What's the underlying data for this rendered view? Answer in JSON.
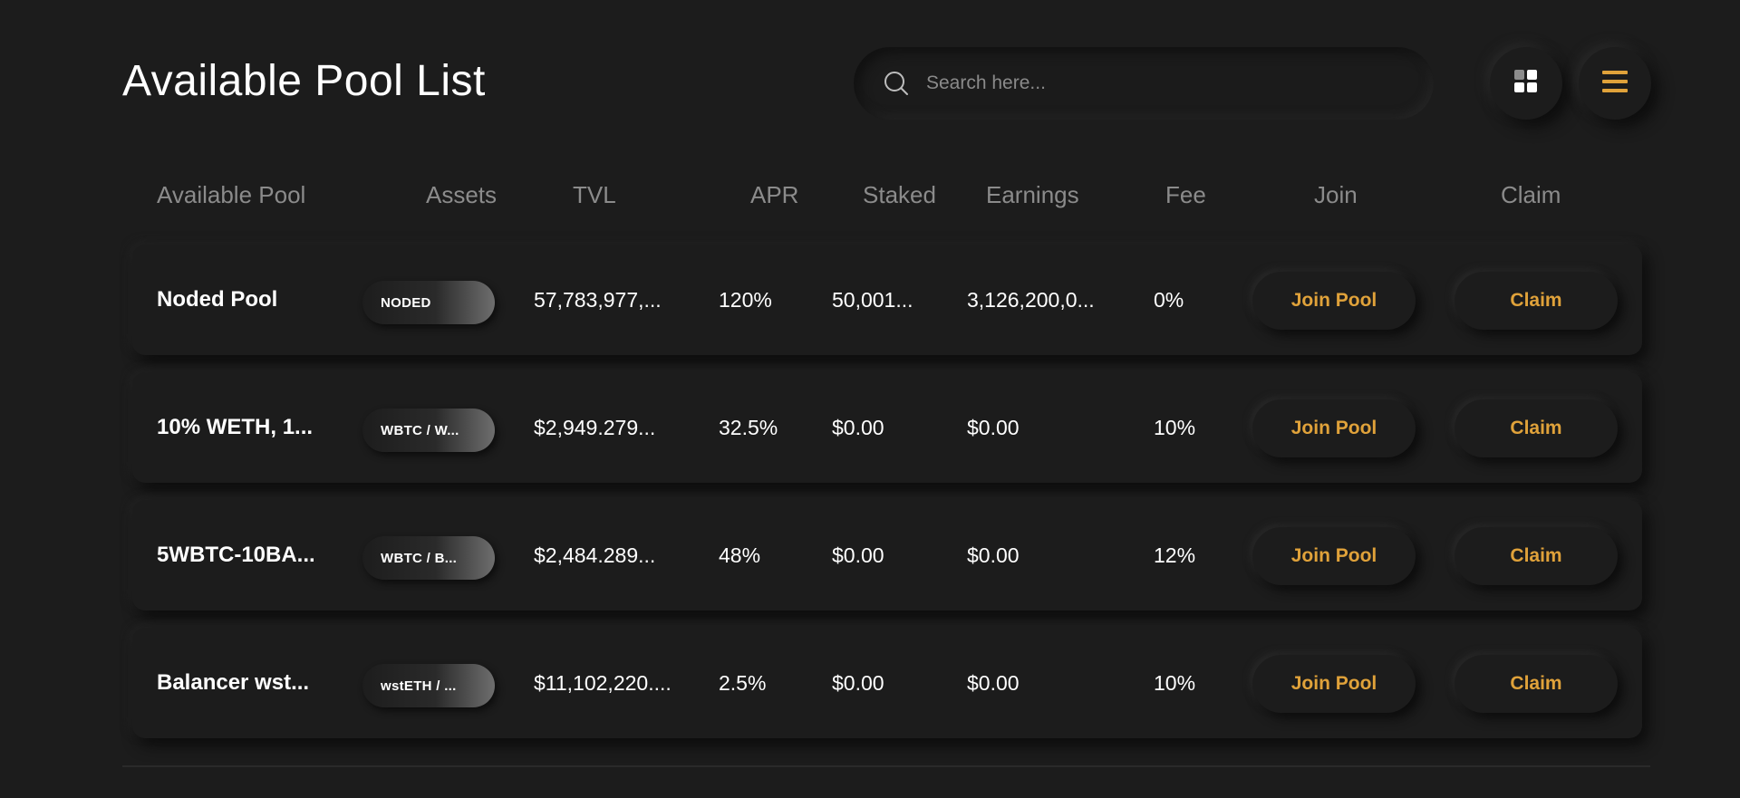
{
  "page": {
    "title": "Available Pool List"
  },
  "search": {
    "placeholder": "Search here..."
  },
  "view_toggle": {
    "grid_icon": "grid-icon",
    "list_icon": "menu-icon",
    "accent": "#e0a23a"
  },
  "table": {
    "headers": [
      "Available Pool",
      "Assets",
      "TVL",
      "APR",
      "Staked",
      "Earnings",
      "Fee",
      "Join",
      "Claim"
    ],
    "rows": [
      {
        "name": "Noded Pool",
        "assets": "NODED",
        "tvl": "57,783,977,...",
        "apr": "120%",
        "staked": "50,001...",
        "earnings": "3,126,200,0...",
        "fee": "0%",
        "join": "Join Pool",
        "claim": "Claim"
      },
      {
        "name": "10% WETH, 1...",
        "assets": "WBTC / W...",
        "tvl": "$2,949.279...",
        "apr": "32.5%",
        "staked": "$0.00",
        "earnings": "$0.00",
        "fee": "10%",
        "join": "Join Pool",
        "claim": "Claim"
      },
      {
        "name": "5WBTC-10BA...",
        "assets": "WBTC / B...",
        "tvl": "$2,484.289...",
        "apr": "48%",
        "staked": "$0.00",
        "earnings": "$0.00",
        "fee": "12%",
        "join": "Join Pool",
        "claim": "Claim"
      },
      {
        "name": "Balancer wst...",
        "assets": "wstETH / ...",
        "tvl": "$11,102,220....",
        "apr": "2.5%",
        "staked": "$0.00",
        "earnings": "$0.00",
        "fee": "10%",
        "join": "Join Pool",
        "claim": "Claim"
      }
    ]
  }
}
